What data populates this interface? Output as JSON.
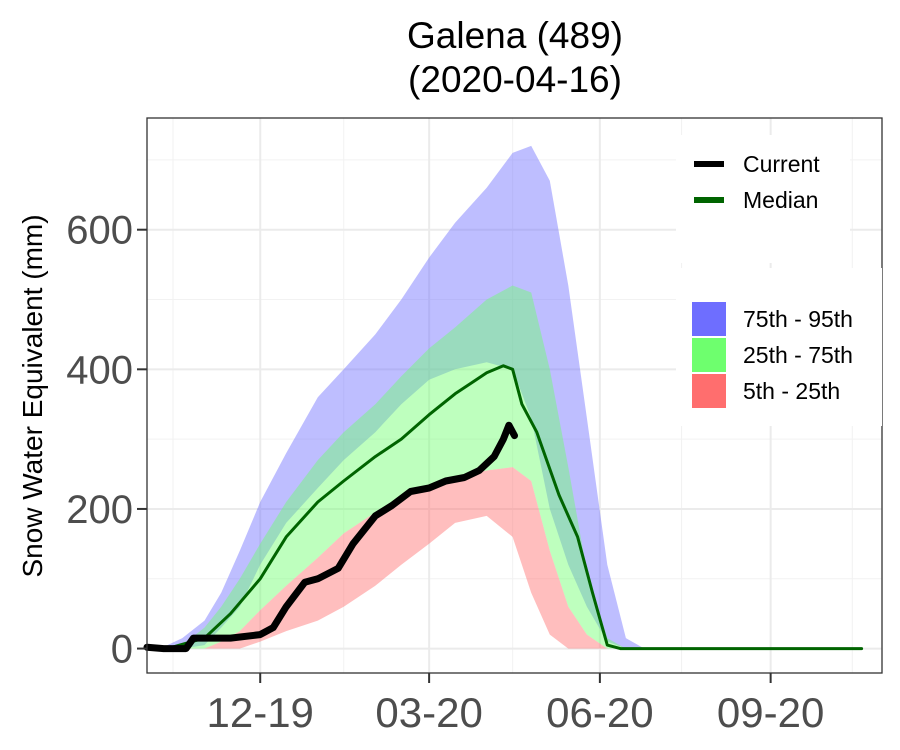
{
  "chart_data": {
    "type": "area",
    "title": "Galena (489)",
    "subtitle": "(2020-04-16)",
    "xlabel": "",
    "ylabel": "Snow Water Equivalent (mm)",
    "x_ticks": [
      "12-19",
      "03-20",
      "06-20",
      "09-20"
    ],
    "y_ticks": [
      0,
      200,
      400,
      600
    ],
    "xlim": [
      "2019-10-01",
      "2020-10-31"
    ],
    "ylim": [
      -35,
      760
    ],
    "grid": true,
    "legend_position": "right-inside",
    "bands": [
      {
        "name": "75th - 95th",
        "color": "#6e6eff",
        "x": [
          "2019-10-12",
          "2019-10-20",
          "2019-11-01",
          "2019-11-10",
          "2019-11-20",
          "2019-12-01",
          "2019-12-15",
          "2020-01-01",
          "2020-01-15",
          "2020-02-01",
          "2020-02-15",
          "2020-03-01",
          "2020-03-15",
          "2020-04-01",
          "2020-04-15",
          "2020-04-25",
          "2020-05-05",
          "2020-05-15",
          "2020-05-25",
          "2020-06-05",
          "2020-06-15",
          "2020-06-25",
          "2020-07-01"
        ],
        "lower": [
          0,
          0,
          5,
          30,
          60,
          120,
          180,
          230,
          270,
          310,
          350,
          385,
          400,
          410,
          400,
          330,
          200,
          120,
          60,
          10,
          0,
          0,
          0
        ],
        "upper": [
          5,
          15,
          40,
          80,
          140,
          210,
          280,
          360,
          400,
          450,
          500,
          560,
          610,
          660,
          710,
          720,
          670,
          520,
          330,
          120,
          15,
          0,
          0
        ]
      },
      {
        "name": "25th - 75th",
        "color": "#6eff6e",
        "x": [
          "2019-10-12",
          "2019-10-20",
          "2019-11-01",
          "2019-11-10",
          "2019-11-20",
          "2019-12-01",
          "2019-12-15",
          "2020-01-01",
          "2020-01-15",
          "2020-02-01",
          "2020-02-15",
          "2020-03-01",
          "2020-03-15",
          "2020-04-01",
          "2020-04-15",
          "2020-04-25",
          "2020-05-05",
          "2020-05-15",
          "2020-05-25",
          "2020-06-05",
          "2020-06-15",
          "2020-06-25",
          "2020-07-01"
        ],
        "lower": [
          0,
          0,
          0,
          10,
          25,
          55,
          90,
          130,
          165,
          195,
          215,
          235,
          245,
          255,
          260,
          240,
          140,
          60,
          20,
          0,
          0,
          0,
          0
        ],
        "upper": [
          0,
          5,
          30,
          60,
          100,
          150,
          210,
          270,
          310,
          350,
          390,
          430,
          460,
          500,
          520,
          510,
          400,
          260,
          110,
          15,
          0,
          0,
          0
        ]
      },
      {
        "name": "5th - 25th",
        "color": "#ff6e6e",
        "x": [
          "2019-10-12",
          "2019-10-20",
          "2019-11-01",
          "2019-11-10",
          "2019-11-20",
          "2019-12-01",
          "2019-12-15",
          "2020-01-01",
          "2020-01-15",
          "2020-02-01",
          "2020-02-15",
          "2020-03-01",
          "2020-03-15",
          "2020-04-01",
          "2020-04-15",
          "2020-04-25",
          "2020-05-05",
          "2020-05-15",
          "2020-05-25",
          "2020-06-05",
          "2020-06-15",
          "2020-06-25",
          "2020-07-01"
        ],
        "lower": [
          0,
          0,
          0,
          0,
          0,
          10,
          25,
          40,
          60,
          90,
          120,
          150,
          180,
          190,
          160,
          80,
          20,
          0,
          0,
          0,
          0,
          0,
          0
        ],
        "upper": [
          0,
          0,
          0,
          10,
          25,
          55,
          90,
          130,
          165,
          195,
          215,
          235,
          245,
          255,
          260,
          240,
          140,
          60,
          20,
          0,
          0,
          0,
          0
        ]
      }
    ],
    "series": [
      {
        "name": "Median",
        "color": "#006400",
        "x": [
          "2019-10-12",
          "2019-11-01",
          "2019-11-15",
          "2019-12-01",
          "2019-12-15",
          "2020-01-01",
          "2020-01-15",
          "2020-02-01",
          "2020-02-15",
          "2020-03-01",
          "2020-03-15",
          "2020-04-01",
          "2020-04-10",
          "2020-04-15",
          "2020-04-20",
          "2020-04-28",
          "2020-05-10",
          "2020-05-20",
          "2020-05-28",
          "2020-06-05",
          "2020-06-12",
          "2020-06-19",
          "2020-10-20"
        ],
        "y": [
          0,
          15,
          50,
          100,
          160,
          210,
          240,
          275,
          300,
          335,
          365,
          395,
          405,
          400,
          350,
          310,
          220,
          160,
          80,
          5,
          0,
          0,
          0
        ]
      },
      {
        "name": "Current",
        "color": "#000000",
        "x": [
          "2019-10-01",
          "2019-10-10",
          "2019-10-22",
          "2019-10-26",
          "2019-11-15",
          "2019-12-01",
          "2019-12-08",
          "2019-12-15",
          "2019-12-25",
          "2020-01-01",
          "2020-01-12",
          "2020-01-20",
          "2020-02-01",
          "2020-02-10",
          "2020-02-20",
          "2020-03-01",
          "2020-03-10",
          "2020-03-20",
          "2020-03-28",
          "2020-04-05",
          "2020-04-10",
          "2020-04-13",
          "2020-04-16"
        ],
        "y": [
          2,
          0,
          0,
          15,
          15,
          20,
          30,
          60,
          95,
          100,
          115,
          150,
          190,
          205,
          225,
          230,
          240,
          245,
          255,
          275,
          300,
          320,
          305
        ]
      }
    ]
  }
}
